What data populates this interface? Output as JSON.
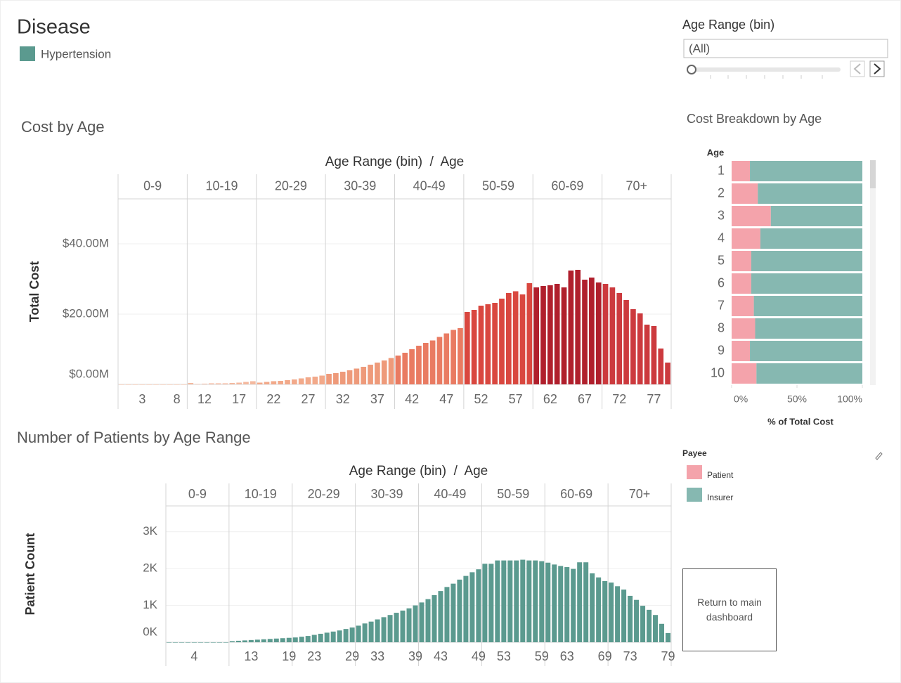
{
  "header": {
    "title": "Disease",
    "legend": [
      {
        "name": "Hypertension",
        "color": "#5b9a8f"
      }
    ]
  },
  "filter": {
    "label": "Age Range (bin)",
    "value": "(All)"
  },
  "button": {
    "label": "Return to main dashboard"
  },
  "chart_data": [
    {
      "type": "bar",
      "title": "Cost by Age",
      "x_header": "Age Range (bin)  /  Age",
      "ylabel": "Total Cost",
      "bins": [
        "0-9",
        "10-19",
        "20-29",
        "30-39",
        "40-49",
        "50-59",
        "60-69",
        "70+"
      ],
      "bin_colors": [
        "#f6c6ad",
        "#f4b99f",
        "#f2a98a",
        "#ee9a7a",
        "#e97b62",
        "#d9473f",
        "#b01f2c",
        "#cc3a3e"
      ],
      "x": [
        0,
        1,
        2,
        3,
        4,
        5,
        6,
        7,
        8,
        9,
        10,
        11,
        12,
        13,
        14,
        15,
        16,
        17,
        18,
        19,
        20,
        21,
        22,
        23,
        24,
        25,
        26,
        27,
        28,
        29,
        30,
        31,
        32,
        33,
        34,
        35,
        36,
        37,
        38,
        39,
        40,
        41,
        42,
        43,
        44,
        45,
        46,
        47,
        48,
        49,
        50,
        51,
        52,
        53,
        54,
        55,
        56,
        57,
        58,
        59,
        60,
        61,
        62,
        63,
        64,
        65,
        66,
        67,
        68,
        69,
        70,
        71,
        72,
        73,
        74,
        75,
        76,
        77,
        78,
        79
      ],
      "values": [
        0,
        0,
        0,
        0,
        0,
        0,
        0,
        0,
        0,
        0,
        400000,
        100000,
        200000,
        300000,
        300000,
        300000,
        400000,
        500000,
        700000,
        900000,
        500000,
        700000,
        900000,
        1000000,
        1200000,
        1400000,
        1700000,
        2000000,
        2200000,
        2500000,
        3000000,
        3200000,
        3600000,
        4000000,
        4500000,
        5000000,
        5600000,
        6200000,
        6800000,
        7500000,
        8200000,
        9000000,
        10000000,
        11000000,
        11800000,
        12500000,
        13500000,
        14500000,
        15500000,
        16000000,
        20600000,
        21200000,
        22400000,
        22800000,
        23200000,
        24400000,
        26000000,
        26500000,
        25600000,
        28800000,
        27600000,
        28000000,
        28200000,
        28600000,
        27600000,
        32400000,
        32600000,
        29800000,
        30400000,
        29000000,
        28600000,
        27600000,
        26000000,
        24000000,
        21400000,
        20200000,
        17000000,
        16600000,
        10200000,
        6200000
      ],
      "xlim": [
        -0.5,
        79.5
      ],
      "xticks": [
        3,
        8,
        12,
        17,
        22,
        27,
        32,
        37,
        42,
        47,
        52,
        57,
        62,
        67,
        72,
        77
      ],
      "ylim": [
        0,
        52800000
      ],
      "yticks": [
        {
          "value": 0,
          "label": "$0.00M"
        },
        {
          "value": 20000000,
          "label": "$20.00M"
        },
        {
          "value": 40000000,
          "label": "$40.00M"
        }
      ],
      "grid": true
    },
    {
      "type": "stacked_bar",
      "title": "Cost Breakdown by Age",
      "ylabel": "Age",
      "xlabel": "% of Total Cost",
      "legend_title": "Payee",
      "categories": [
        1,
        2,
        3,
        4,
        5,
        6,
        7,
        8,
        9,
        10
      ],
      "series": [
        {
          "name": "Patient",
          "color": "#f4a3ab",
          "values": [
            14,
            20,
            30,
            22,
            15,
            15,
            17,
            18,
            14,
            19
          ]
        },
        {
          "name": "Insurer",
          "color": "#86b8b1",
          "values": [
            86,
            80,
            70,
            78,
            85,
            85,
            83,
            82,
            86,
            81
          ]
        }
      ],
      "xlim": [
        0,
        100
      ],
      "xticks": [
        {
          "value": 0,
          "label": "0%"
        },
        {
          "value": 50,
          "label": "50%"
        },
        {
          "value": 100,
          "label": "100%"
        }
      ]
    },
    {
      "type": "bar",
      "title": "Number of Patients by Age Range",
      "x_header": "Age Range (bin)  /  Age",
      "ylabel": "Patient Count",
      "bins": [
        "0-9",
        "10-19",
        "20-29",
        "30-39",
        "40-49",
        "50-59",
        "60-69",
        "70+"
      ],
      "color": "#5b9a8f",
      "x": [
        0,
        1,
        2,
        3,
        4,
        5,
        6,
        7,
        8,
        9,
        10,
        11,
        12,
        13,
        14,
        15,
        16,
        17,
        18,
        19,
        20,
        21,
        22,
        23,
        24,
        25,
        26,
        27,
        28,
        29,
        30,
        31,
        32,
        33,
        34,
        35,
        36,
        37,
        38,
        39,
        40,
        41,
        42,
        43,
        44,
        45,
        46,
        47,
        48,
        49,
        50,
        51,
        52,
        53,
        54,
        55,
        56,
        57,
        58,
        59,
        60,
        61,
        62,
        63,
        64,
        65,
        66,
        67,
        68,
        69,
        70,
        71,
        72,
        73,
        74,
        75,
        76,
        77,
        78,
        79
      ],
      "values": [
        0,
        0,
        0,
        0,
        0,
        0,
        0,
        0,
        0,
        0,
        30,
        40,
        50,
        60,
        70,
        80,
        90,
        100,
        110,
        120,
        130,
        150,
        170,
        200,
        230,
        260,
        290,
        320,
        360,
        400,
        450,
        510,
        560,
        620,
        680,
        740,
        800,
        860,
        920,
        1000,
        1080,
        1170,
        1280,
        1390,
        1500,
        1590,
        1700,
        1800,
        1900,
        1980,
        2130,
        2130,
        2220,
        2220,
        2220,
        2220,
        2240,
        2220,
        2220,
        2200,
        2160,
        2110,
        2070,
        2040,
        1990,
        2170,
        2170,
        1870,
        1760,
        1660,
        1620,
        1520,
        1430,
        1260,
        1150,
        990,
        880,
        740,
        500,
        250
      ],
      "xlim": [
        -0.5,
        79.5
      ],
      "xticks": [
        4,
        13,
        19,
        23,
        29,
        33,
        39,
        43,
        49,
        53,
        59,
        63,
        69,
        73,
        79
      ],
      "ylim": [
        0,
        3700
      ],
      "yticks": [
        {
          "value": 0,
          "label": "0K"
        },
        {
          "value": 1000,
          "label": "1K"
        },
        {
          "value": 2000,
          "label": "2K"
        },
        {
          "value": 3000,
          "label": "3K"
        }
      ],
      "grid": true
    }
  ]
}
